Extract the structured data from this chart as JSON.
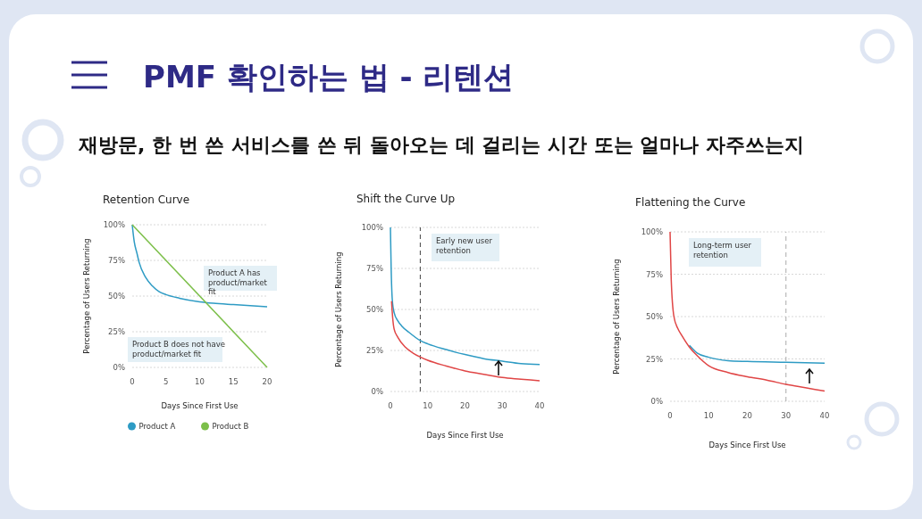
{
  "chart_data": [
    {
      "type": "other",
      "title": "PMF 확인하는 법 - 리텐션",
      "subtitle": "재방문, 한 번 쓴 서비스를 쓴 뒤 돌아오는 데 걸리는 시간 또는 얼마나 자주쓰는지"
    },
    {
      "type": "line",
      "title": "Retention Curve",
      "xlabel": "Days Since First Use",
      "ylabel": "Percentage of Users Returning",
      "xlim": [
        0,
        20
      ],
      "xticks": [
        0,
        5,
        10,
        15,
        20
      ],
      "ylim": [
        0,
        100
      ],
      "yticks": [
        {
          "value": 0,
          "label": "0%"
        },
        {
          "value": 25,
          "label": "25%"
        },
        {
          "value": 50,
          "label": "50%"
        },
        {
          "value": 75,
          "label": "75%"
        },
        {
          "value": 100,
          "label": "100%"
        }
      ],
      "grid": "y",
      "legend": "bottom",
      "series": [
        {
          "name": "Product A",
          "color": "#2e9bc4",
          "x": [
            0,
            0.3,
            0.7,
            1,
            2,
            3,
            4,
            5,
            7,
            10,
            12,
            15,
            20
          ],
          "values": [
            100,
            88,
            80,
            74,
            63,
            57,
            53,
            51,
            48.5,
            46,
            45,
            44,
            42.5
          ]
        },
        {
          "name": "Product B",
          "color": "#7cbf4a",
          "x": [
            0,
            20
          ],
          "values": [
            100,
            0
          ]
        }
      ],
      "annotations": [
        "Product A has product/market fit",
        "Product B does not have product/market fit"
      ]
    },
    {
      "type": "line",
      "title": "Shift the Curve Up",
      "xlabel": "Days Since First Use",
      "ylabel": "Percentage of Users Returning",
      "xlim": [
        0,
        40
      ],
      "xticks": [
        0,
        10,
        20,
        30,
        40
      ],
      "ylim": [
        0,
        100
      ],
      "yticks": [
        {
          "value": 0,
          "label": "0%"
        },
        {
          "value": 25,
          "label": "25%"
        },
        {
          "value": 50,
          "label": "50%"
        },
        {
          "value": 75,
          "label": "75%"
        },
        {
          "value": 100,
          "label": "100%"
        }
      ],
      "grid": "y",
      "series": [
        {
          "color": "#2e9bc4",
          "x": [
            0,
            0.2,
            0.5,
            1,
            2,
            3,
            5,
            8,
            10,
            15,
            20,
            25,
            30,
            35,
            40
          ],
          "values": [
            100,
            75,
            56,
            48,
            43,
            40,
            36,
            31,
            29,
            25.5,
            22.5,
            20,
            18.5,
            17,
            16.5
          ]
        },
        {
          "color": "#e04646",
          "x": [
            0.3,
            0.6,
            1,
            2,
            4,
            6,
            8,
            10,
            15,
            20,
            25,
            30,
            35,
            40
          ],
          "values": [
            55,
            45,
            38,
            33,
            27,
            23.5,
            21,
            19,
            15.5,
            12.5,
            10.5,
            8.5,
            7.5,
            6.5
          ]
        }
      ],
      "ref_lines": [
        {
          "axis": "x",
          "value": 8,
          "color": "#444444",
          "line_style": "dashed"
        }
      ],
      "annotations": [
        "Early new user retention"
      ]
    },
    {
      "type": "line",
      "title": "Flattening the Curve",
      "xlabel": "Days Since First Use",
      "ylabel": "Percentage of Users Returning",
      "xlim": [
        0,
        40
      ],
      "xticks": [
        0,
        10,
        20,
        30,
        40
      ],
      "ylim": [
        0,
        100
      ],
      "yticks": [
        {
          "value": 0,
          "label": "0%"
        },
        {
          "value": 25,
          "label": "25%"
        },
        {
          "value": 50,
          "label": "50%"
        },
        {
          "value": 75,
          "label": "75%"
        },
        {
          "value": 100,
          "label": "100%"
        }
      ],
      "grid": "y",
      "series": [
        {
          "color": "#2e9bc4",
          "x": [
            5,
            7,
            10,
            15,
            20,
            30,
            40
          ],
          "values": [
            33,
            28.5,
            26,
            24,
            23.5,
            23,
            22.5
          ]
        },
        {
          "color": "#e04646",
          "x": [
            0,
            0.3,
            1,
            2,
            3,
            5,
            7,
            10,
            15,
            20,
            25,
            30,
            35,
            40
          ],
          "values": [
            100,
            72,
            50,
            43,
            39,
            32,
            27,
            21,
            17,
            14.5,
            12.5,
            10,
            8,
            6
          ]
        }
      ],
      "ref_lines": [
        {
          "axis": "x",
          "value": 30,
          "color": "#aaaaaa",
          "line_style": "dashed"
        }
      ],
      "annotations": [
        "Long-term user retention"
      ]
    }
  ]
}
